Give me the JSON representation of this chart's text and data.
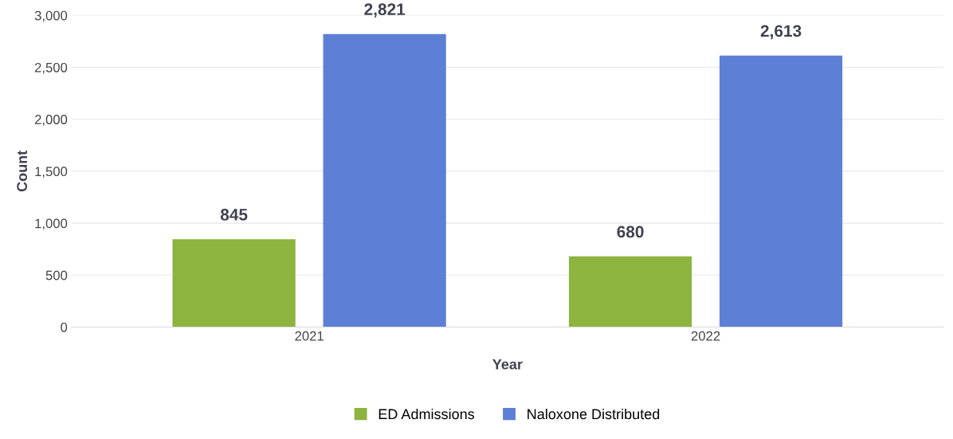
{
  "chart_data": {
    "type": "bar",
    "xlabel": "Year",
    "ylabel": "Count",
    "categories": [
      "2021",
      "2022"
    ],
    "series": [
      {
        "name": "ED Admissions",
        "color": "#8cb43e",
        "values": [
          845,
          680
        ],
        "value_labels": [
          "845",
          "680"
        ]
      },
      {
        "name": "Naloxone Distributed",
        "color": "#5d80d6",
        "values": [
          2821,
          2613
        ],
        "value_labels": [
          "2,821",
          "2,613"
        ]
      }
    ],
    "ylim": [
      0,
      3000
    ],
    "yticks": [
      0,
      500,
      {
        "value": 1000,
        "label": "1,000"
      },
      {
        "value": 1500,
        "label": "1,500"
      },
      {
        "value": 2000,
        "label": "2,000"
      },
      {
        "value": 2500,
        "label": "2,500"
      },
      {
        "value": 3000,
        "label": "3,000"
      }
    ],
    "grid": "y",
    "legend": "bottom"
  }
}
